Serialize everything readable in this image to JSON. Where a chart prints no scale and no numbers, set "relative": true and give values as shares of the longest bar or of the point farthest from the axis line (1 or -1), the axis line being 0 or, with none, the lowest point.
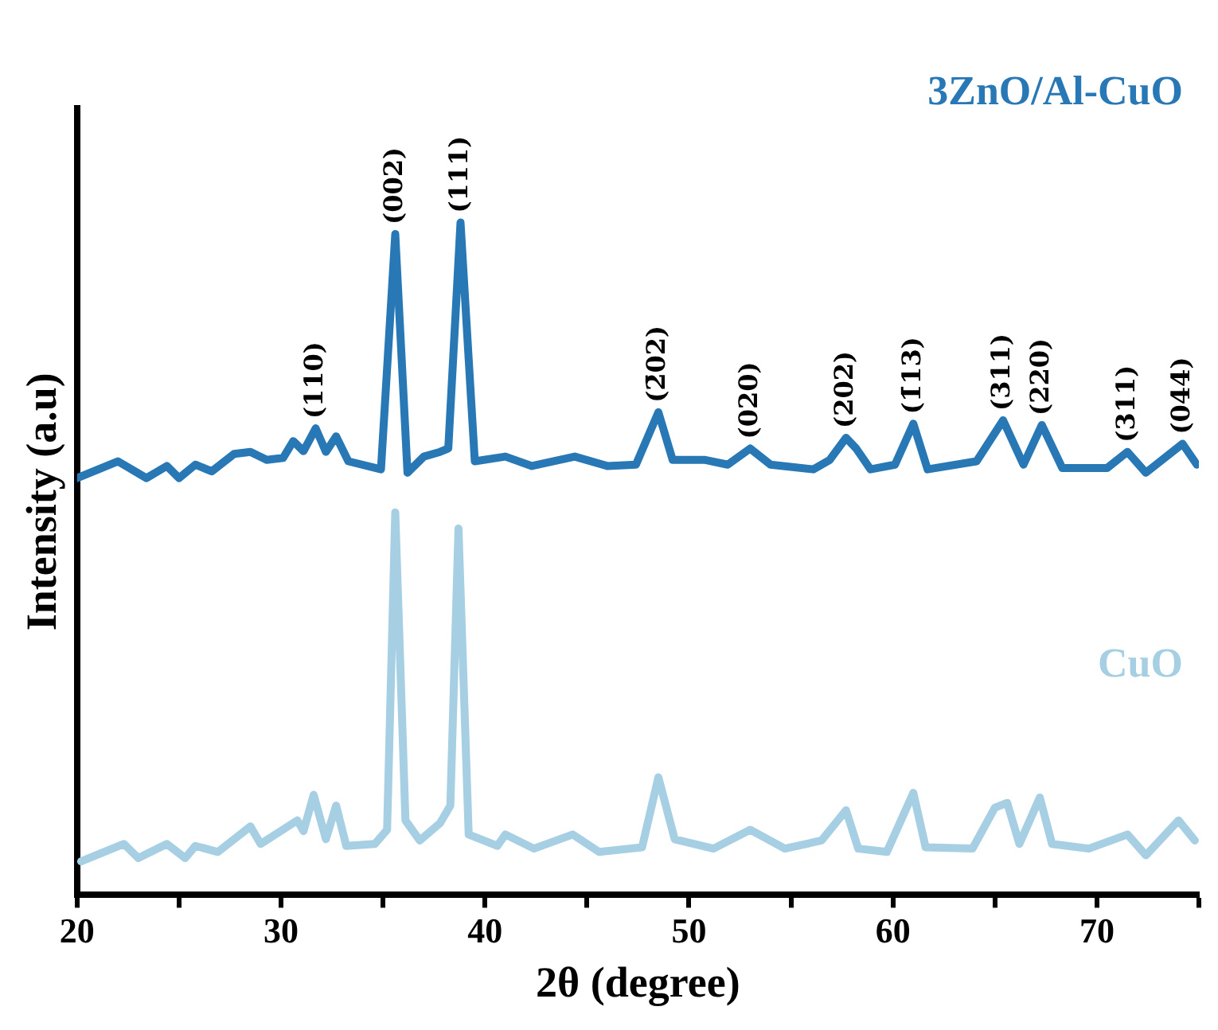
{
  "chart_data": {
    "type": "line",
    "relative": true,
    "xlabel": "2θ (degree)",
    "ylabel": "Intensity (a.u)",
    "xlim": [
      20,
      75
    ],
    "xticks": [
      20,
      {
        "value": 25,
        "label": null
      },
      30,
      {
        "value": 35,
        "label": null
      },
      40,
      {
        "value": 45,
        "label": null
      },
      50,
      {
        "value": 55,
        "label": null
      },
      60,
      {
        "value": 65,
        "label": null
      },
      70,
      {
        "value": 75,
        "label": null
      }
    ],
    "grid": false,
    "legend": false,
    "marker": "none",
    "line_style": "solid",
    "series": [
      {
        "name": "3ZnO/Al-CuO",
        "color": "#2878b5",
        "x": [
          20.0,
          22.0,
          23.4,
          24.4,
          25.0,
          25.8,
          26.6,
          27.7,
          28.5,
          29.3,
          30.1,
          30.6,
          31.1,
          31.7,
          32.2,
          32.7,
          33.3,
          34.9,
          35.6,
          36.2,
          37.0,
          37.8,
          38.2,
          38.8,
          39.5,
          41.0,
          42.3,
          44.4,
          46.0,
          47.4,
          48.5,
          49.2,
          50.8,
          51.9,
          53.0,
          54.0,
          56.1,
          56.9,
          57.7,
          58.2,
          58.9,
          60.1,
          61.0,
          61.7,
          64.1,
          65.4,
          66.4,
          67.3,
          68.3,
          70.5,
          71.5,
          72.4,
          74.2,
          74.9
        ],
        "values": [
          0.62,
          0.645,
          0.62,
          0.638,
          0.62,
          0.64,
          0.63,
          0.656,
          0.659,
          0.647,
          0.65,
          0.675,
          0.66,
          0.694,
          0.659,
          0.682,
          0.645,
          0.633,
          0.983,
          0.628,
          0.652,
          0.659,
          0.664,
          1.0,
          0.645,
          0.652,
          0.638,
          0.652,
          0.638,
          0.64,
          0.718,
          0.647,
          0.647,
          0.64,
          0.664,
          0.64,
          0.633,
          0.647,
          0.68,
          0.664,
          0.633,
          0.64,
          0.701,
          0.633,
          0.645,
          0.706,
          0.64,
          0.699,
          0.635,
          0.635,
          0.659,
          0.628,
          0.671,
          0.64
        ]
      },
      {
        "name": "CuO",
        "color": "#a6cfe4",
        "x": [
          20.2,
          22.3,
          23.0,
          24.4,
          25.3,
          25.8,
          26.9,
          28.5,
          29.0,
          30.8,
          31.1,
          31.6,
          32.2,
          32.7,
          33.2,
          34.6,
          35.2,
          35.6,
          36.1,
          36.8,
          37.8,
          38.3,
          38.7,
          39.2,
          40.6,
          41.0,
          42.4,
          44.3,
          45.6,
          47.7,
          48.5,
          49.3,
          51.2,
          53.0,
          54.7,
          56.5,
          57.7,
          58.3,
          59.7,
          61.0,
          61.6,
          63.9,
          65.0,
          65.6,
          66.2,
          67.2,
          67.8,
          69.6,
          71.5,
          72.4,
          74.0,
          74.8
        ],
        "values": [
          0.05,
          0.076,
          0.055,
          0.076,
          0.055,
          0.073,
          0.064,
          0.102,
          0.076,
          0.111,
          0.095,
          0.149,
          0.083,
          0.133,
          0.073,
          0.076,
          0.097,
          0.569,
          0.111,
          0.081,
          0.107,
          0.133,
          0.545,
          0.09,
          0.073,
          0.09,
          0.069,
          0.09,
          0.064,
          0.071,
          0.175,
          0.083,
          0.069,
          0.097,
          0.069,
          0.081,
          0.126,
          0.069,
          0.064,
          0.152,
          0.071,
          0.069,
          0.13,
          0.137,
          0.076,
          0.145,
          0.076,
          0.069,
          0.09,
          0.059,
          0.111,
          0.081
        ]
      }
    ],
    "annotations": [
      {
        "text": "(110)",
        "x": 31.7,
        "y": 0.694
      },
      {
        "text": "(002)",
        "x": 35.6,
        "y": 0.983
      },
      {
        "text": "(111)",
        "x": 38.8,
        "y": 1.0
      },
      {
        "text": "(2̄02)",
        "x": 48.5,
        "y": 0.718
      },
      {
        "text": "(020)",
        "x": 53.0,
        "y": 0.664
      },
      {
        "text": "(202)",
        "x": 57.7,
        "y": 0.68
      },
      {
        "text": "(1̄13)",
        "x": 61.0,
        "y": 0.701
      },
      {
        "text": "(311)",
        "x": 65.4,
        "y": 0.706
      },
      {
        "text": "(220)",
        "x": 67.3,
        "y": 0.699
      },
      {
        "text": "(311)",
        "x": 71.5,
        "y": 0.659
      },
      {
        "text": "(044)",
        "x": 74.2,
        "y": 0.671
      }
    ]
  }
}
